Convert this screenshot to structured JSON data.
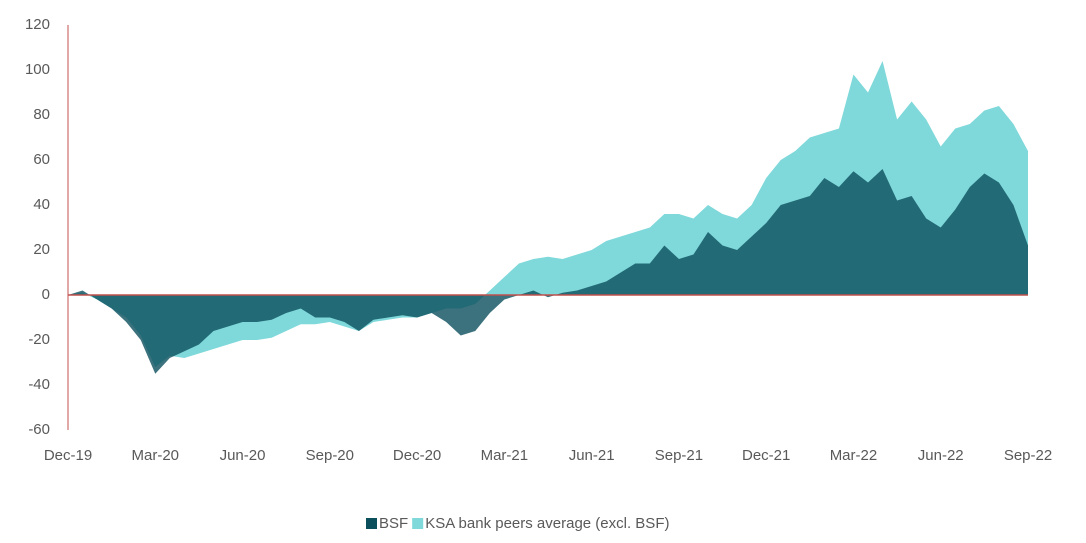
{
  "chart_data": {
    "type": "area",
    "categories": [
      "Dec-19",
      null,
      null,
      null,
      null,
      null,
      "Mar-20",
      null,
      null,
      null,
      null,
      null,
      "Jun-20",
      null,
      null,
      null,
      null,
      null,
      "Sep-20",
      null,
      null,
      null,
      null,
      null,
      "Dec-20",
      null,
      null,
      null,
      null,
      null,
      "Mar-21",
      null,
      null,
      null,
      null,
      null,
      "Jun-21",
      null,
      null,
      null,
      null,
      null,
      "Sep-21",
      null,
      null,
      null,
      null,
      null,
      "Dec-21",
      null,
      null,
      null,
      null,
      null,
      "Mar-22",
      null,
      null,
      null,
      null,
      null,
      "Jun-22",
      null,
      null,
      null,
      null,
      null,
      "Sep-22"
    ],
    "series": [
      {
        "name": "KSA bank peers average (excl. BSF)",
        "color": "#7fd8da",
        "values": [
          0,
          1,
          -2,
          -6,
          -10,
          -18,
          -32,
          -27,
          -28,
          -26,
          -24,
          -22,
          -20,
          -20,
          -19,
          -16,
          -13,
          -13,
          -12,
          -14,
          -16,
          -12,
          -11,
          -10,
          -10,
          -8,
          -6,
          -6,
          -4,
          2,
          8,
          14,
          16,
          17,
          16,
          18,
          20,
          24,
          26,
          28,
          30,
          36,
          36,
          34,
          40,
          36,
          34,
          40,
          52,
          60,
          64,
          70,
          72,
          74,
          98,
          90,
          104,
          78,
          86,
          78,
          66,
          74,
          76,
          82,
          84,
          76,
          64
        ]
      },
      {
        "name": "BSF",
        "color": "#0b4f5c",
        "values": [
          0,
          2,
          -2,
          -6,
          -12,
          -20,
          -35,
          -28,
          -25,
          -22,
          -16,
          -14,
          -12,
          -12,
          -11,
          -8,
          -6,
          -10,
          -10,
          -12,
          -16,
          -11,
          -10,
          -9,
          -10,
          -8,
          -12,
          -18,
          -16,
          -8,
          -2,
          0,
          2,
          -1,
          1,
          2,
          4,
          6,
          10,
          14,
          14,
          22,
          16,
          18,
          28,
          22,
          20,
          26,
          32,
          40,
          42,
          44,
          52,
          48,
          55,
          50,
          56,
          42,
          44,
          34,
          30,
          38,
          48,
          54,
          50,
          40,
          22
        ]
      }
    ],
    "ylim": [
      -60,
      120
    ],
    "yticks": [
      -60,
      -40,
      -20,
      0,
      20,
      40,
      60,
      80,
      100,
      120
    ],
    "axis_color": "#c0504d",
    "legend": "bottom"
  }
}
